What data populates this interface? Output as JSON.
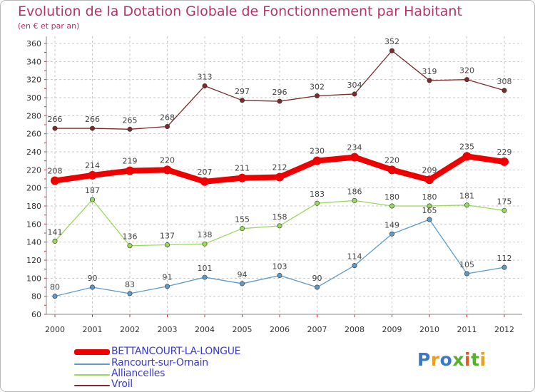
{
  "header": {
    "title": "Evolution de la Dotation Globale de Fonctionnement par Habitant",
    "subtitle": "(en € et par an)"
  },
  "legend": {
    "items": [
      {
        "label": "BETTANCOURT-LA-LONGUE",
        "color": "#ee0000"
      },
      {
        "label": "Rancourt-sur-Ornain",
        "color": "#5f9ac6"
      },
      {
        "label": "Alliancelles",
        "color": "#98d95b"
      },
      {
        "label": "Vroil",
        "color": "#7b2b2b"
      }
    ]
  },
  "logo": {
    "text": "Proxiti",
    "colors": [
      "#3a78c8",
      "#e8a020",
      "#3a78c8",
      "#55b030",
      "#e05a20",
      "#55b030",
      "#e8a020"
    ]
  },
  "chart_data": {
    "type": "line",
    "title": "Evolution de la Dotation Globale de Fonctionnement par Habitant",
    "subtitle": "(en € et par an)",
    "xlabel": "",
    "ylabel": "",
    "categories": [
      "2000",
      "2001",
      "2002",
      "2003",
      "2004",
      "2005",
      "2006",
      "2007",
      "2008",
      "2009",
      "2010",
      "2011",
      "2012"
    ],
    "ylim": [
      60,
      360
    ],
    "yticks": [
      60,
      80,
      100,
      120,
      140,
      160,
      180,
      200,
      220,
      240,
      260,
      280,
      300,
      320,
      340,
      360
    ],
    "grid": true,
    "legend_position": "bottom-left",
    "series": [
      {
        "name": "BETTANCOURT-LA-LONGUE",
        "color": "#ee0000",
        "values": [
          208,
          214,
          219,
          220,
          207,
          211,
          212,
          230,
          234,
          220,
          209,
          235,
          229
        ]
      },
      {
        "name": "Rancourt-sur-Ornain",
        "color": "#5f9ac6",
        "values": [
          80,
          90,
          83,
          91,
          101,
          94,
          103,
          90,
          114,
          149,
          165,
          105,
          112
        ]
      },
      {
        "name": "Alliancelles",
        "color": "#98d95b",
        "values": [
          141,
          187,
          136,
          137,
          138,
          155,
          158,
          183,
          186,
          180,
          180,
          181,
          175
        ]
      },
      {
        "name": "Vroil",
        "color": "#7b2b2b",
        "values": [
          266,
          266,
          265,
          268,
          313,
          297,
          296,
          302,
          304,
          352,
          319,
          320,
          308
        ]
      }
    ]
  }
}
